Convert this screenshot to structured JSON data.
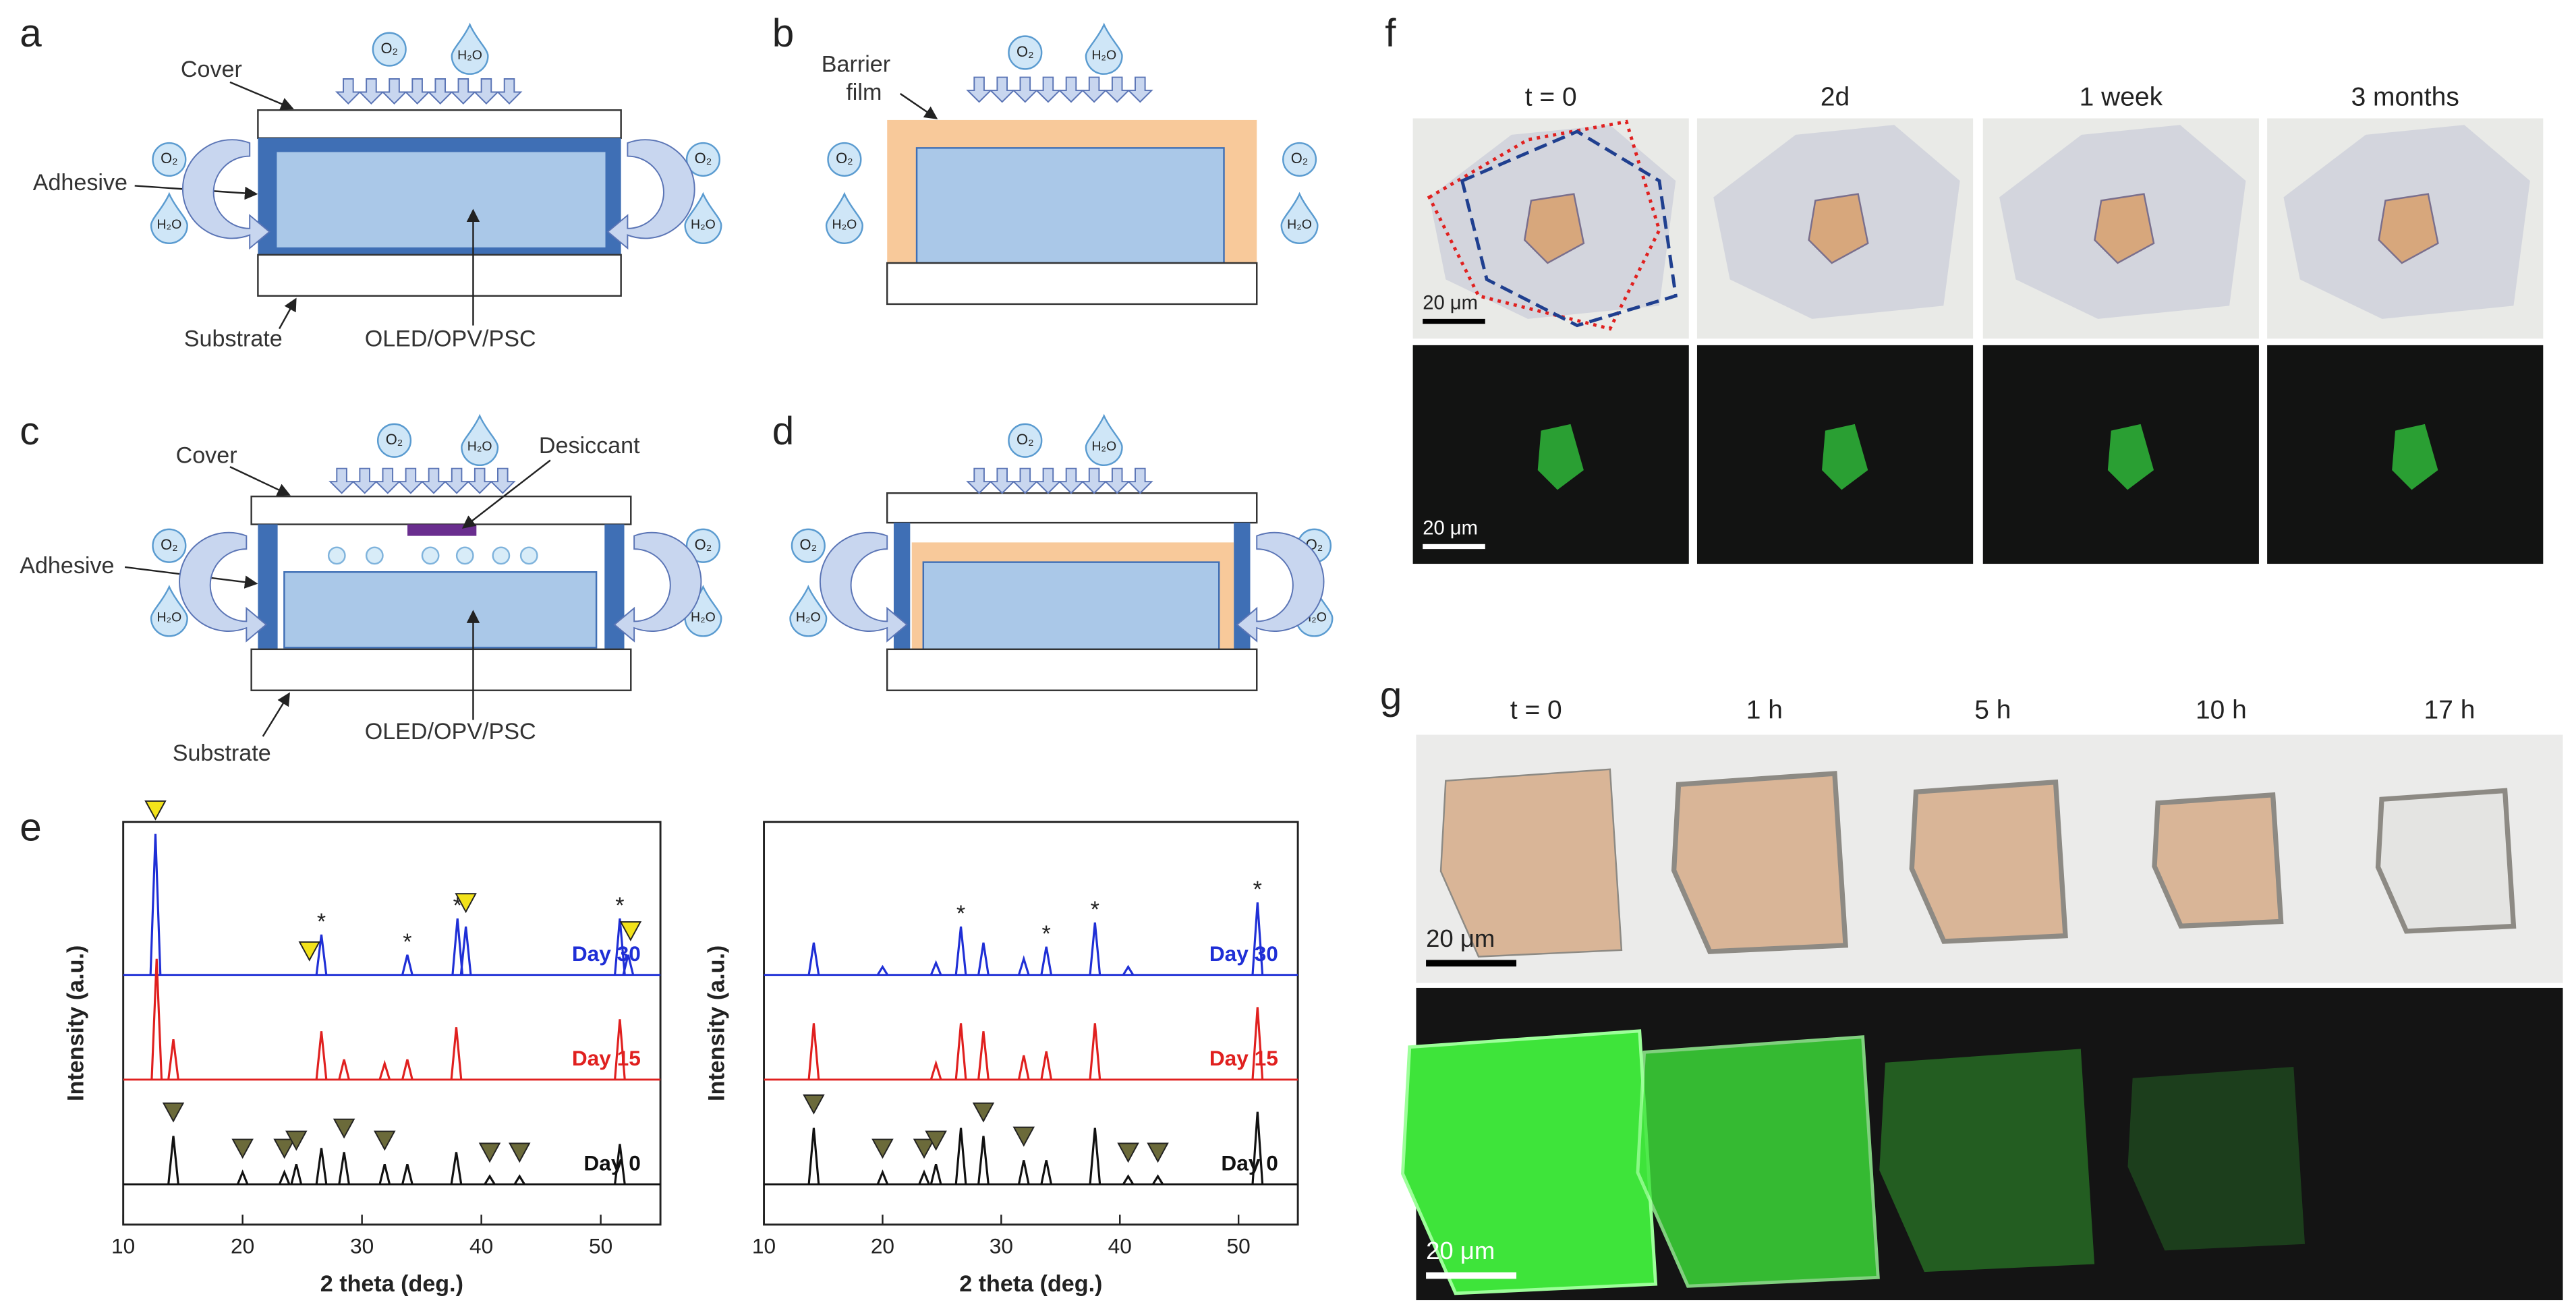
{
  "panel_labels": [
    "a",
    "b",
    "c",
    "d",
    "e",
    "f",
    "g"
  ],
  "molecules": {
    "oxygen": "O₂",
    "water": "H₂O"
  },
  "a": {
    "cover": "Cover",
    "adhesive": "Adhesive",
    "substrate": "Substrate",
    "device": "OLED/OPV/PSC"
  },
  "b": {
    "barrier": [
      "Barrier",
      "film"
    ]
  },
  "c": {
    "cover": "Cover",
    "desiccant": "Desiccant",
    "adhesive": "Adhesive",
    "substrate": "Substrate",
    "device": "OLED/OPV/PSC"
  },
  "f": {
    "headers": [
      "t = 0",
      "2d",
      "1 week",
      "3 months"
    ],
    "scale_bar": "20 μm"
  },
  "g": {
    "headers": [
      "t = 0",
      "1 h",
      "5 h",
      "10 h",
      "17 h"
    ],
    "scale_bar": "20 μm"
  },
  "chart_data": [
    {
      "type": "line",
      "x_label": "2 theta (deg.)",
      "y_label": "Intensity (a.u.)",
      "xlim": [
        10,
        55
      ],
      "xticks": [
        10,
        20,
        30,
        40,
        50
      ],
      "ylim": [
        0,
        100
      ],
      "star_symbol": "*",
      "series": [
        {
          "name": "Day 30",
          "color": "#1f2fd6",
          "x": [
            12.7,
            26.6,
            33.8,
            38.0,
            38.7,
            51.6,
            52.3
          ],
          "values": [
            35,
            10,
            5,
            14,
            12,
            14,
            5
          ],
          "starred": [
            26.6,
            33.8,
            38.0,
            51.6
          ],
          "triangles": [
            12.7,
            25.6,
            38.7,
            52.5
          ],
          "triangle_color": "#f2e21a"
        },
        {
          "name": "Day 15",
          "color": "#e0201f",
          "x": [
            12.8,
            14.2,
            26.6,
            28.5,
            31.9,
            33.8,
            37.9,
            51.6
          ],
          "values": [
            30,
            10,
            12,
            5,
            4,
            5,
            13,
            15
          ],
          "starred": [],
          "triangles": [],
          "triangle_color": "#f2e21a"
        },
        {
          "name": "Day 0",
          "color": "#111111",
          "x": [
            14.2,
            20.0,
            23.5,
            24.5,
            26.6,
            28.5,
            31.9,
            33.8,
            37.9,
            40.7,
            43.2,
            51.6
          ],
          "values": [
            12,
            3,
            3,
            5,
            9,
            8,
            5,
            5,
            8,
            2,
            2,
            10
          ],
          "starred": [],
          "triangles": [
            14.2,
            20.0,
            23.5,
            24.5,
            28.5,
            31.9,
            40.7,
            43.2
          ],
          "triangle_color": "#6b6a3a"
        }
      ]
    },
    {
      "type": "line",
      "x_label": "2 theta (deg.)",
      "y_label": "Intensity (a.u.)",
      "xlim": [
        10,
        55
      ],
      "xticks": [
        10,
        20,
        30,
        40,
        50
      ],
      "ylim": [
        0,
        100
      ],
      "star_symbol": "*",
      "series": [
        {
          "name": "Day 30",
          "color": "#1f2fd6",
          "x": [
            14.2,
            20.0,
            24.5,
            26.6,
            28.5,
            31.9,
            33.8,
            37.9,
            40.7,
            51.6
          ],
          "values": [
            8,
            2,
            3,
            12,
            8,
            4,
            7,
            13,
            2,
            18
          ],
          "starred": [
            26.6,
            33.8,
            37.9,
            51.6
          ],
          "triangles": [],
          "triangle_color": "#f2e21a"
        },
        {
          "name": "Day 15",
          "color": "#e0201f",
          "x": [
            14.2,
            24.5,
            26.6,
            28.5,
            31.9,
            33.8,
            37.9,
            51.6
          ],
          "values": [
            14,
            4,
            14,
            12,
            6,
            7,
            14,
            18
          ],
          "starred": [],
          "triangles": [],
          "triangle_color": "#f2e21a"
        },
        {
          "name": "Day 0",
          "color": "#111111",
          "x": [
            14.2,
            20.0,
            23.5,
            24.5,
            26.6,
            28.5,
            31.9,
            33.8,
            37.9,
            40.7,
            43.2,
            51.6
          ],
          "values": [
            14,
            3,
            3,
            5,
            14,
            12,
            6,
            6,
            14,
            2,
            2,
            18
          ],
          "starred": [],
          "triangles": [
            14.2,
            20.0,
            23.5,
            24.5,
            28.5,
            31.9,
            40.7,
            43.2
          ],
          "triangle_color": "#6b6a3a"
        }
      ]
    }
  ]
}
